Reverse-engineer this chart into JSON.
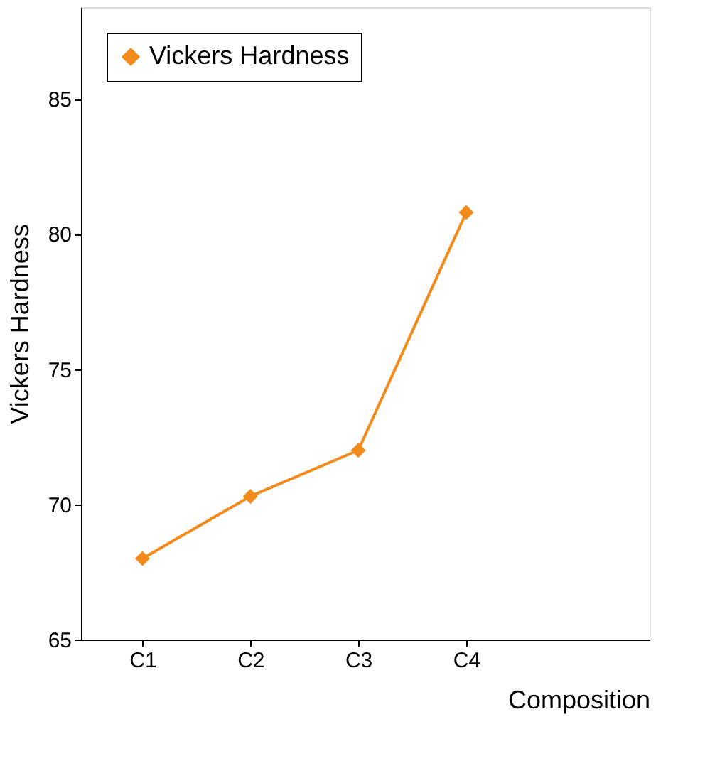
{
  "chart_data": {
    "type": "line",
    "xlabel": "Composition",
    "ylabel": "Vickers Hardness",
    "categories": [
      "C1",
      "C2",
      "C3",
      "C4"
    ],
    "series": [
      {
        "name": "Vickers Hardness",
        "color": "#f28a1c",
        "values": [
          68.0,
          70.3,
          72.0,
          80.8
        ]
      }
    ],
    "ylim": [
      65,
      88.4
    ],
    "yticks": [
      65,
      70,
      75,
      80,
      85
    ],
    "grid": false,
    "legend": "top left",
    "marker": "diamond",
    "line_style": "solid"
  }
}
